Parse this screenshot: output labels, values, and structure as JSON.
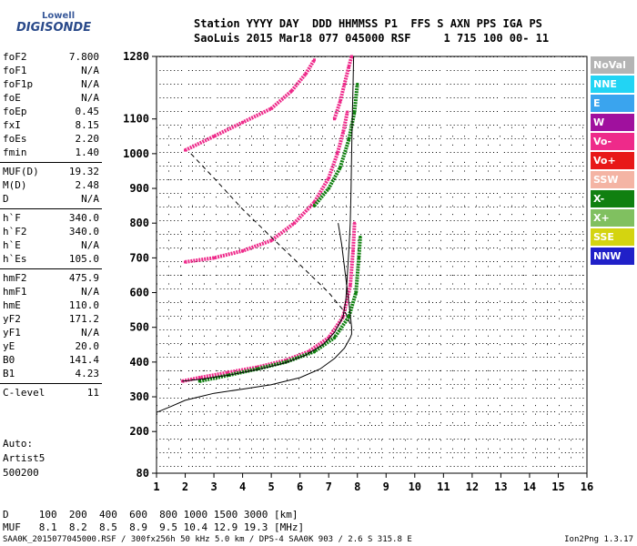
{
  "logo": {
    "line1": "Lowell",
    "line2": "DIGISONDE"
  },
  "header": {
    "line1": "Station YYYY DAY  DDD HHMMSS P1  FFS S AXN PPS IGA PS",
    "line2": "SaoLuis 2015 Mar18 077 045000 RSF     1 715 100 00- 11"
  },
  "params": [
    [
      {
        "name": "foF2",
        "value": "7.800"
      },
      {
        "name": "foF1",
        "value": "N/A"
      },
      {
        "name": "foF1p",
        "value": "N/A"
      },
      {
        "name": "foE",
        "value": "N/A"
      },
      {
        "name": "foEp",
        "value": "0.45"
      },
      {
        "name": "fxI",
        "value": "8.15"
      },
      {
        "name": "foEs",
        "value": "2.20"
      },
      {
        "name": "fmin",
        "value": "1.40"
      }
    ],
    [
      {
        "name": "MUF(D)",
        "value": "19.32"
      },
      {
        "name": "M(D)",
        "value": "2.48"
      },
      {
        "name": "D",
        "value": "N/A"
      }
    ],
    [
      {
        "name": "h`F",
        "value": "340.0"
      },
      {
        "name": "h`F2",
        "value": "340.0"
      },
      {
        "name": "h`E",
        "value": "N/A"
      },
      {
        "name": "h`Es",
        "value": "105.0"
      }
    ],
    [
      {
        "name": "hmF2",
        "value": "475.9"
      },
      {
        "name": "hmF1",
        "value": "N/A"
      },
      {
        "name": "hmE",
        "value": "110.0"
      },
      {
        "name": "yF2",
        "value": "171.2"
      },
      {
        "name": "yF1",
        "value": "N/A"
      },
      {
        "name": "yE",
        "value": "20.0"
      },
      {
        "name": "B0",
        "value": "141.4"
      },
      {
        "name": "B1",
        "value": "4.23"
      }
    ],
    [
      {
        "name": "C-level",
        "value": "11"
      }
    ]
  ],
  "auto": {
    "line1": "Auto:",
    "line2": "Artist5",
    "line3": "500200"
  },
  "muf_table": {
    "row1": "D     100  200  400  600  800 1000 1500 3000 [km]",
    "row2": "MUF   8.1  8.2  8.5  8.9  9.5 10.4 12.9 19.3 [MHz]"
  },
  "footer": {
    "left": "SAA0K_2015077045000.RSF / 300fx256h 50 kHz 5.0 km / DPS-4 SAA0K 903 / 2.6 S 315.8 E",
    "right": "Ion2Png 1.3.17"
  },
  "legend": [
    {
      "label": "NoVal",
      "color": "#b4b4b4"
    },
    {
      "label": "NNE",
      "color": "#22d4f4"
    },
    {
      "label": "E",
      "color": "#3aa4ee"
    },
    {
      "label": "W",
      "color": "#a0109e"
    },
    {
      "label": "Vo-",
      "color": "#ee2a8a"
    },
    {
      "label": "Vo+",
      "color": "#e81818"
    },
    {
      "label": "SSW",
      "color": "#f4b4a4"
    },
    {
      "label": "X-",
      "color": "#108010"
    },
    {
      "label": "X+",
      "color": "#80c060"
    },
    {
      "label": "SSE",
      "color": "#d4d410"
    },
    {
      "label": "NNW",
      "color": "#2020c8"
    }
  ],
  "chart_data": {
    "type": "scatter",
    "xlim": [
      1,
      16
    ],
    "ylim": [
      80,
      1280
    ],
    "xticks": [
      1,
      2,
      3,
      4,
      5,
      6,
      7,
      8,
      9,
      10,
      11,
      12,
      13,
      14,
      15,
      16
    ],
    "yticks": [
      80,
      200,
      300,
      400,
      500,
      600,
      700,
      800,
      900,
      1000,
      1100,
      1280
    ],
    "grid": true,
    "legend_position": "right",
    "series": [
      {
        "name": "Vo-",
        "style": "echo",
        "points": [
          [
            1.9,
            345
          ],
          [
            2.5,
            355
          ],
          [
            3.5,
            370
          ],
          [
            4.5,
            385
          ],
          [
            5.5,
            405
          ],
          [
            6.3,
            430
          ],
          [
            7.0,
            470
          ],
          [
            7.5,
            530
          ],
          [
            7.75,
            620
          ],
          [
            7.85,
            720
          ],
          [
            7.9,
            800
          ]
        ]
      },
      {
        "name": "X-",
        "style": "echo",
        "points": [
          [
            2.5,
            345
          ],
          [
            3.5,
            362
          ],
          [
            4.5,
            380
          ],
          [
            5.5,
            400
          ],
          [
            6.5,
            430
          ],
          [
            7.2,
            470
          ],
          [
            7.7,
            530
          ],
          [
            7.95,
            600
          ],
          [
            8.05,
            700
          ],
          [
            8.1,
            760
          ]
        ]
      },
      {
        "name": "Vo-",
        "style": "echo",
        "points": [
          [
            2.0,
            688
          ],
          [
            3.0,
            700
          ],
          [
            4.0,
            720
          ],
          [
            5.0,
            750
          ],
          [
            5.8,
            800
          ],
          [
            6.5,
            860
          ],
          [
            7.0,
            930
          ],
          [
            7.3,
            1000
          ],
          [
            7.5,
            1060
          ],
          [
            7.65,
            1120
          ]
        ]
      },
      {
        "name": "X-",
        "style": "echo",
        "points": [
          [
            6.5,
            850
          ],
          [
            7.0,
            900
          ],
          [
            7.4,
            960
          ],
          [
            7.7,
            1040
          ],
          [
            7.9,
            1120
          ],
          [
            8.0,
            1200
          ]
        ]
      },
      {
        "name": "Vo-",
        "style": "echo",
        "points": [
          [
            2.0,
            1010
          ],
          [
            3.0,
            1050
          ],
          [
            4.0,
            1090
          ],
          [
            5.0,
            1130
          ],
          [
            5.7,
            1180
          ],
          [
            6.2,
            1230
          ],
          [
            6.5,
            1270
          ]
        ]
      },
      {
        "name": "Vo-",
        "style": "echo",
        "points": [
          [
            7.2,
            1100
          ],
          [
            7.4,
            1150
          ],
          [
            7.55,
            1200
          ],
          [
            7.7,
            1250
          ],
          [
            7.8,
            1280
          ]
        ]
      },
      {
        "name": "",
        "style": "profile",
        "points": [
          [
            1.0,
            255
          ],
          [
            1.5,
            272
          ],
          [
            2.0,
            290
          ],
          [
            2.5,
            300
          ],
          [
            3.0,
            310
          ],
          [
            4.0,
            322
          ],
          [
            5.0,
            335
          ],
          [
            6.0,
            355
          ],
          [
            6.7,
            380
          ],
          [
            7.2,
            410
          ],
          [
            7.55,
            440
          ],
          [
            7.75,
            470
          ],
          [
            7.8,
            480
          ],
          [
            7.8,
            500
          ],
          [
            7.72,
            560
          ],
          [
            7.6,
            640
          ],
          [
            7.45,
            740
          ],
          [
            7.33,
            800
          ]
        ]
      },
      {
        "name": "",
        "style": "trace",
        "points": [
          [
            1.9,
            345
          ],
          [
            2.5,
            350
          ],
          [
            3.5,
            362
          ],
          [
            4.5,
            378
          ],
          [
            5.5,
            398
          ],
          [
            6.2,
            420
          ],
          [
            6.8,
            450
          ],
          [
            7.2,
            485
          ],
          [
            7.5,
            530
          ],
          [
            7.6,
            580
          ],
          [
            7.65,
            650
          ],
          [
            7.7,
            720
          ],
          [
            7.75,
            800
          ],
          [
            7.78,
            900
          ],
          [
            7.8,
            1000
          ],
          [
            7.82,
            1100
          ],
          [
            7.85,
            1200
          ],
          [
            7.87,
            1280
          ]
        ]
      },
      {
        "name": "",
        "style": "dashed",
        "points": [
          [
            2.2,
            1000
          ],
          [
            3.0,
            930
          ],
          [
            4.0,
            840
          ],
          [
            5.0,
            760
          ],
          [
            6.0,
            680
          ],
          [
            7.0,
            600
          ],
          [
            7.6,
            540
          ],
          [
            7.8,
            500
          ]
        ]
      }
    ]
  }
}
